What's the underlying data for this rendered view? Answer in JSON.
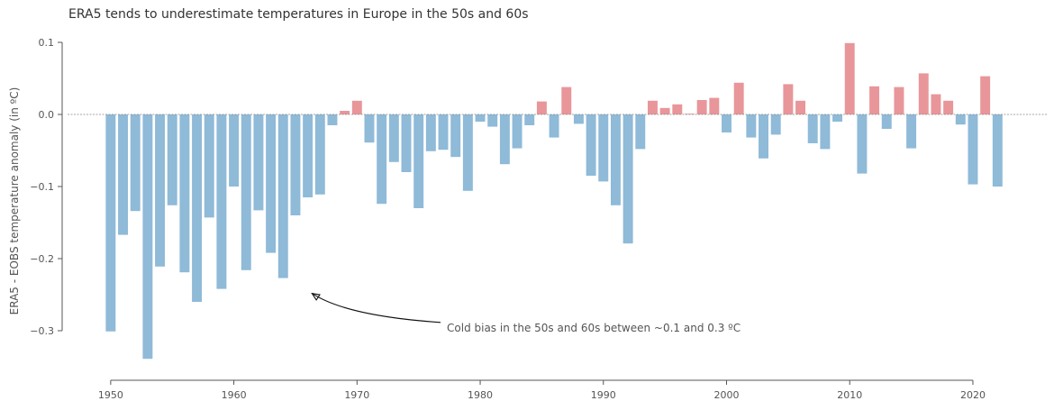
{
  "chart_data": {
    "type": "bar",
    "title": "ERA5 tends to underestimate temperatures in Europe in the 50s and 60s",
    "xlabel": "",
    "ylabel": "ERA5 - EOBS temperature anomaly (in ºC)",
    "xticks": [
      1950,
      1960,
      1970,
      1980,
      1990,
      2000,
      2010,
      2020
    ],
    "xtick_labels": [
      "1950",
      "1960",
      "1970",
      "1980",
      "1990",
      "2000",
      "2010",
      "2020"
    ],
    "yticks": [
      0.1,
      0.0,
      -0.1,
      -0.2,
      -0.3
    ],
    "ytick_labels": [
      "0.1",
      "0.0",
      "−0.1",
      "−0.2",
      "−0.3"
    ],
    "xlim": [
      1946.5,
      2026
    ],
    "ylim": [
      -0.36,
      0.1
    ],
    "grid": false,
    "zero_line": true,
    "colors": {
      "negative": "#8fbad8",
      "positive": "#e8969a",
      "axis": "#555555",
      "text": "#555555",
      "title": "#333333"
    },
    "x": [
      1950,
      1951,
      1952,
      1953,
      1954,
      1955,
      1956,
      1957,
      1958,
      1959,
      1960,
      1961,
      1962,
      1963,
      1964,
      1965,
      1966,
      1967,
      1968,
      1969,
      1970,
      1971,
      1972,
      1973,
      1974,
      1975,
      1976,
      1977,
      1978,
      1979,
      1980,
      1981,
      1982,
      1983,
      1984,
      1985,
      1986,
      1987,
      1988,
      1989,
      1990,
      1991,
      1992,
      1993,
      1994,
      1995,
      1996,
      1997,
      1998,
      1999,
      2000,
      2001,
      2002,
      2003,
      2004,
      2005,
      2006,
      2007,
      2008,
      2009,
      2010,
      2011,
      2012,
      2013,
      2014,
      2015,
      2016,
      2017,
      2018,
      2019,
      2020,
      2021,
      2022
    ],
    "values": [
      -0.301,
      -0.167,
      -0.134,
      -0.339,
      -0.211,
      -0.126,
      -0.219,
      -0.26,
      -0.143,
      -0.242,
      -0.1,
      -0.216,
      -0.133,
      -0.192,
      -0.227,
      -0.14,
      -0.115,
      -0.111,
      -0.015,
      0.005,
      0.019,
      -0.039,
      -0.124,
      -0.066,
      -0.08,
      -0.13,
      -0.051,
      -0.049,
      -0.059,
      -0.106,
      -0.01,
      -0.017,
      -0.069,
      -0.047,
      -0.015,
      0.018,
      -0.032,
      0.038,
      -0.013,
      -0.085,
      -0.093,
      -0.126,
      -0.179,
      -0.048,
      0.019,
      0.009,
      0.014,
      0.001,
      0.02,
      0.023,
      -0.025,
      0.044,
      -0.032,
      -0.061,
      -0.028,
      0.042,
      0.019,
      -0.04,
      -0.048,
      -0.01,
      0.099,
      -0.082,
      0.039,
      -0.02,
      0.038,
      -0.047,
      0.057,
      0.028,
      0.019,
      -0.014,
      -0.097,
      0.053,
      -0.1
    ],
    "annotation": {
      "text": "Cold bias in the 50s and 60s between ~0.1 and 0.3 ºC",
      "x": 1977,
      "y": -0.296,
      "arrow_to": {
        "x": 1966.2,
        "y": -0.247
      }
    }
  }
}
